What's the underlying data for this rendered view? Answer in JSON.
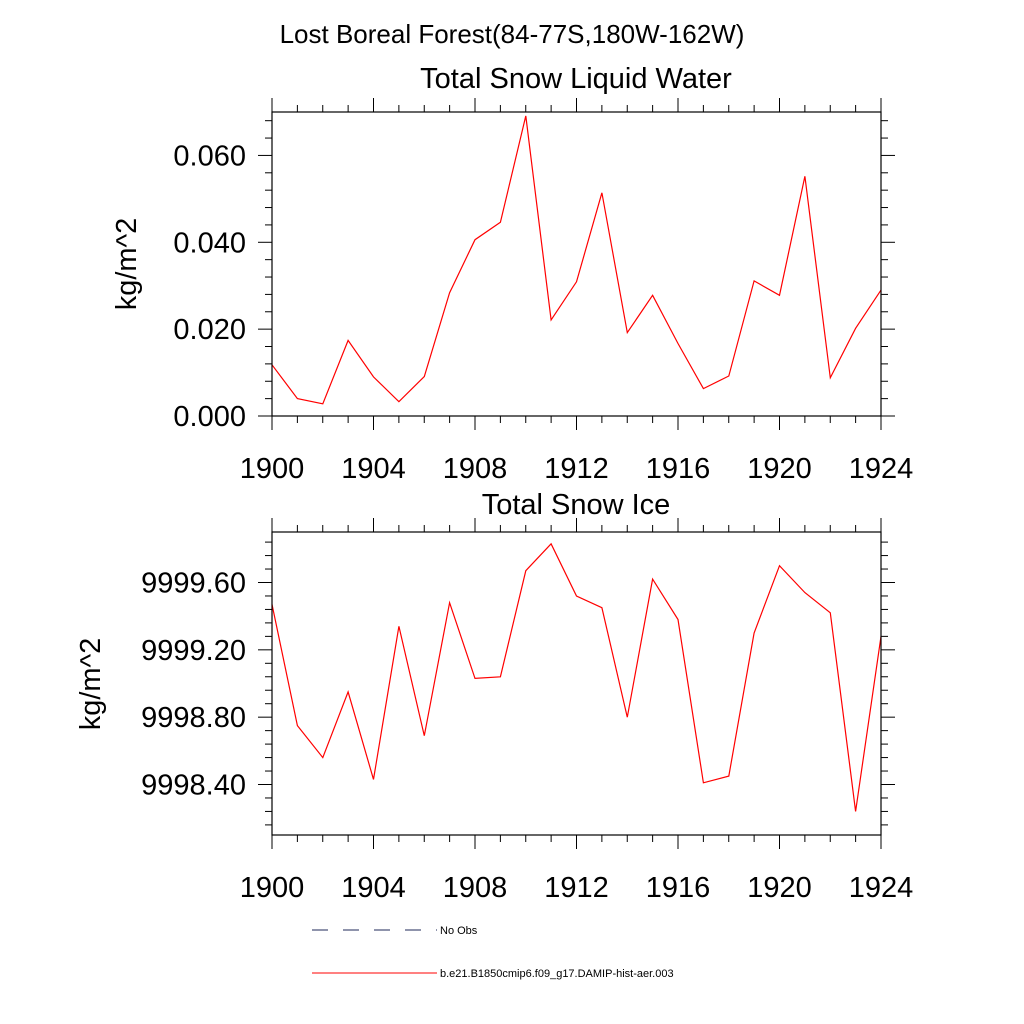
{
  "figure": {
    "suptitle": "Lost Boreal Forest(84-77S,180W-162W)"
  },
  "chart_data": [
    {
      "type": "line",
      "title": "Total Snow Liquid Water",
      "xlabel": "",
      "ylabel": "kg/m^2",
      "xlim": [
        1900,
        1924
      ],
      "ylim": [
        0.0,
        0.07
      ],
      "x_ticks": [
        1900,
        1904,
        1908,
        1912,
        1916,
        1920,
        1924
      ],
      "y_ticks": [
        0.0,
        0.02,
        0.04,
        0.06
      ],
      "y_tick_labels": [
        "0.000",
        "0.020",
        "0.040",
        "0.060"
      ],
      "x": [
        1900,
        1901,
        1902,
        1903,
        1904,
        1905,
        1906,
        1907,
        1908,
        1909,
        1910,
        1911,
        1912,
        1913,
        1914,
        1915,
        1916,
        1917,
        1918,
        1919,
        1920,
        1921,
        1922,
        1923,
        1924
      ],
      "series": [
        {
          "name": "b.e21.B1850cmip6.f09_g17.DAMIP-hist-aer.003",
          "color": "#ff0000",
          "values": [
            0.0118,
            0.004,
            0.0028,
            0.0174,
            0.009,
            0.0033,
            0.0091,
            0.0284,
            0.0406,
            0.0446,
            0.0691,
            0.0221,
            0.0309,
            0.0514,
            0.0192,
            0.0278,
            0.0167,
            0.0063,
            0.0092,
            0.0311,
            0.0278,
            0.0552,
            0.0088,
            0.0202,
            0.029
          ]
        }
      ]
    },
    {
      "type": "line",
      "title": "Total Snow Ice",
      "xlabel": "",
      "ylabel": "kg/m^2",
      "xlim": [
        1900,
        1924
      ],
      "ylim": [
        9998.1,
        9999.9
      ],
      "x_ticks": [
        1900,
        1904,
        1908,
        1912,
        1916,
        1920,
        1924
      ],
      "y_ticks": [
        9998.4,
        9998.8,
        9999.2,
        9999.6
      ],
      "y_tick_labels": [
        "9998.40",
        "9998.80",
        "9999.20",
        "9999.60"
      ],
      "x": [
        1900,
        1901,
        1902,
        1903,
        1904,
        1905,
        1906,
        1907,
        1908,
        1909,
        1910,
        1911,
        1912,
        1913,
        1914,
        1915,
        1916,
        1917,
        1918,
        1919,
        1920,
        1921,
        1922,
        1923,
        1924
      ],
      "series": [
        {
          "name": "b.e21.B1850cmip6.f09_g17.DAMIP-hist-aer.003",
          "color": "#ff0000",
          "values": [
            9999.47,
            9998.75,
            9998.56,
            9998.95,
            9998.43,
            9999.34,
            9998.69,
            9999.48,
            9999.03,
            9999.04,
            9999.67,
            9999.83,
            9999.52,
            9999.45,
            9998.8,
            9999.62,
            9999.38,
            9998.41,
            9998.45,
            9999.3,
            9999.7,
            9999.54,
            9999.42,
            9998.24,
            9999.28
          ]
        }
      ]
    }
  ],
  "legend": {
    "placement": "bottom",
    "entries": [
      {
        "label": "No Obs",
        "style": "dashed",
        "color": "#1f2a5a"
      },
      {
        "label": "b.e21.B1850cmip6.f09_g17.DAMIP-hist-aer.003",
        "style": "solid",
        "color": "#ff0000"
      }
    ]
  }
}
